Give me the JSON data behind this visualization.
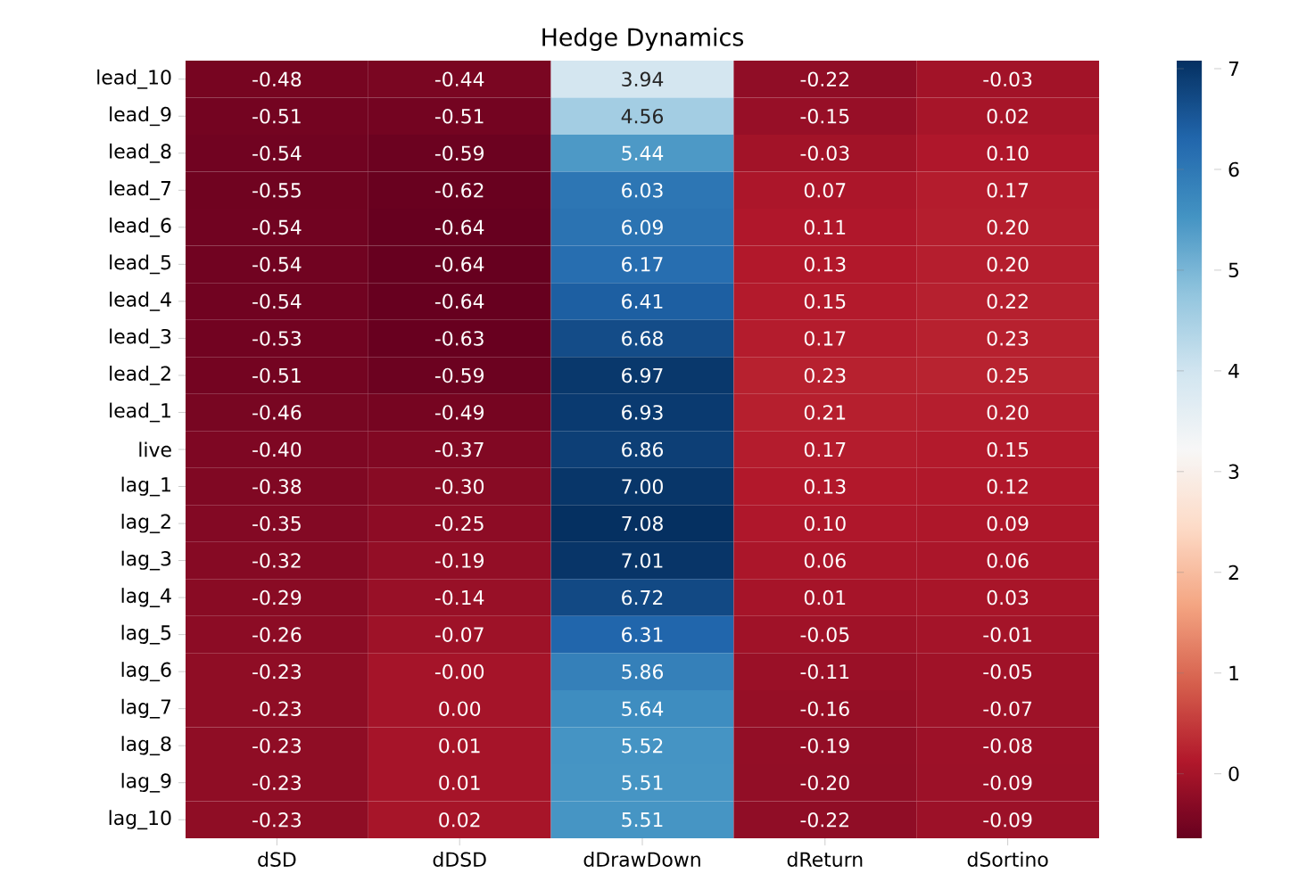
{
  "chart_data": {
    "type": "heatmap",
    "title": "Hedge Dynamics",
    "categories": [
      "dSD",
      "dDSD",
      "dDrawDown",
      "dReturn",
      "dSortino"
    ],
    "y_categories": [
      "lead_10",
      "lead_9",
      "lead_8",
      "lead_7",
      "lead_6",
      "lead_5",
      "lead_4",
      "lead_3",
      "lead_2",
      "lead_1",
      "live",
      "lag_1",
      "lag_2",
      "lag_3",
      "lag_4",
      "lag_5",
      "lag_6",
      "lag_7",
      "lag_8",
      "lag_9",
      "lag_10"
    ],
    "cells": [
      [
        -0.48,
        -0.44,
        3.94,
        -0.22,
        -0.03
      ],
      [
        -0.51,
        -0.51,
        4.56,
        -0.15,
        0.02
      ],
      [
        -0.54,
        -0.59,
        5.44,
        -0.03,
        0.1
      ],
      [
        -0.55,
        -0.62,
        6.03,
        0.07,
        0.17
      ],
      [
        -0.54,
        -0.64,
        6.09,
        0.11,
        0.2
      ],
      [
        -0.54,
        -0.64,
        6.17,
        0.13,
        0.2
      ],
      [
        -0.54,
        -0.64,
        6.41,
        0.15,
        0.22
      ],
      [
        -0.53,
        -0.63,
        6.68,
        0.17,
        0.23
      ],
      [
        -0.51,
        -0.59,
        6.97,
        0.23,
        0.25
      ],
      [
        -0.46,
        -0.49,
        6.93,
        0.21,
        0.2
      ],
      [
        -0.4,
        -0.37,
        6.86,
        0.17,
        0.15
      ],
      [
        -0.38,
        -0.3,
        7.0,
        0.13,
        0.12
      ],
      [
        -0.35,
        -0.25,
        7.08,
        0.1,
        0.09
      ],
      [
        -0.32,
        -0.19,
        7.01,
        0.06,
        0.06
      ],
      [
        -0.29,
        -0.14,
        6.72,
        0.01,
        0.03
      ],
      [
        -0.26,
        -0.07,
        6.31,
        -0.05,
        -0.01
      ],
      [
        -0.23,
        0.0,
        5.86,
        -0.11,
        -0.05
      ],
      [
        -0.23,
        0.0,
        5.64,
        -0.16,
        -0.07
      ],
      [
        -0.23,
        0.01,
        5.52,
        -0.19,
        -0.08
      ],
      [
        -0.23,
        0.01,
        5.51,
        -0.2,
        -0.09
      ],
      [
        -0.23,
        0.02,
        5.51,
        -0.22,
        -0.09
      ]
    ],
    "cell_labels": [
      [
        "-0.48",
        "-0.44",
        "3.94",
        "-0.22",
        "-0.03"
      ],
      [
        "-0.51",
        "-0.51",
        "4.56",
        "-0.15",
        "0.02"
      ],
      [
        "-0.54",
        "-0.59",
        "5.44",
        "-0.03",
        "0.10"
      ],
      [
        "-0.55",
        "-0.62",
        "6.03",
        "0.07",
        "0.17"
      ],
      [
        "-0.54",
        "-0.64",
        "6.09",
        "0.11",
        "0.20"
      ],
      [
        "-0.54",
        "-0.64",
        "6.17",
        "0.13",
        "0.20"
      ],
      [
        "-0.54",
        "-0.64",
        "6.41",
        "0.15",
        "0.22"
      ],
      [
        "-0.53",
        "-0.63",
        "6.68",
        "0.17",
        "0.23"
      ],
      [
        "-0.51",
        "-0.59",
        "6.97",
        "0.23",
        "0.25"
      ],
      [
        "-0.46",
        "-0.49",
        "6.93",
        "0.21",
        "0.20"
      ],
      [
        "-0.40",
        "-0.37",
        "6.86",
        "0.17",
        "0.15"
      ],
      [
        "-0.38",
        "-0.30",
        "7.00",
        "0.13",
        "0.12"
      ],
      [
        "-0.35",
        "-0.25",
        "7.08",
        "0.10",
        "0.09"
      ],
      [
        "-0.32",
        "-0.19",
        "7.01",
        "0.06",
        "0.06"
      ],
      [
        "-0.29",
        "-0.14",
        "6.72",
        "0.01",
        "0.03"
      ],
      [
        "-0.26",
        "-0.07",
        "6.31",
        "-0.05",
        "-0.01"
      ],
      [
        "-0.23",
        "-0.00",
        "5.86",
        "-0.11",
        "-0.05"
      ],
      [
        "-0.23",
        "0.00",
        "5.64",
        "-0.16",
        "-0.07"
      ],
      [
        "-0.23",
        "0.01",
        "5.52",
        "-0.19",
        "-0.08"
      ],
      [
        "-0.23",
        "0.01",
        "5.51",
        "-0.20",
        "-0.09"
      ],
      [
        "-0.23",
        "0.02",
        "5.51",
        "-0.22",
        "-0.09"
      ]
    ],
    "clim": [
      -0.64,
      7.08
    ],
    "cticks": [
      0,
      1,
      2,
      3,
      4,
      5,
      6,
      7
    ]
  }
}
